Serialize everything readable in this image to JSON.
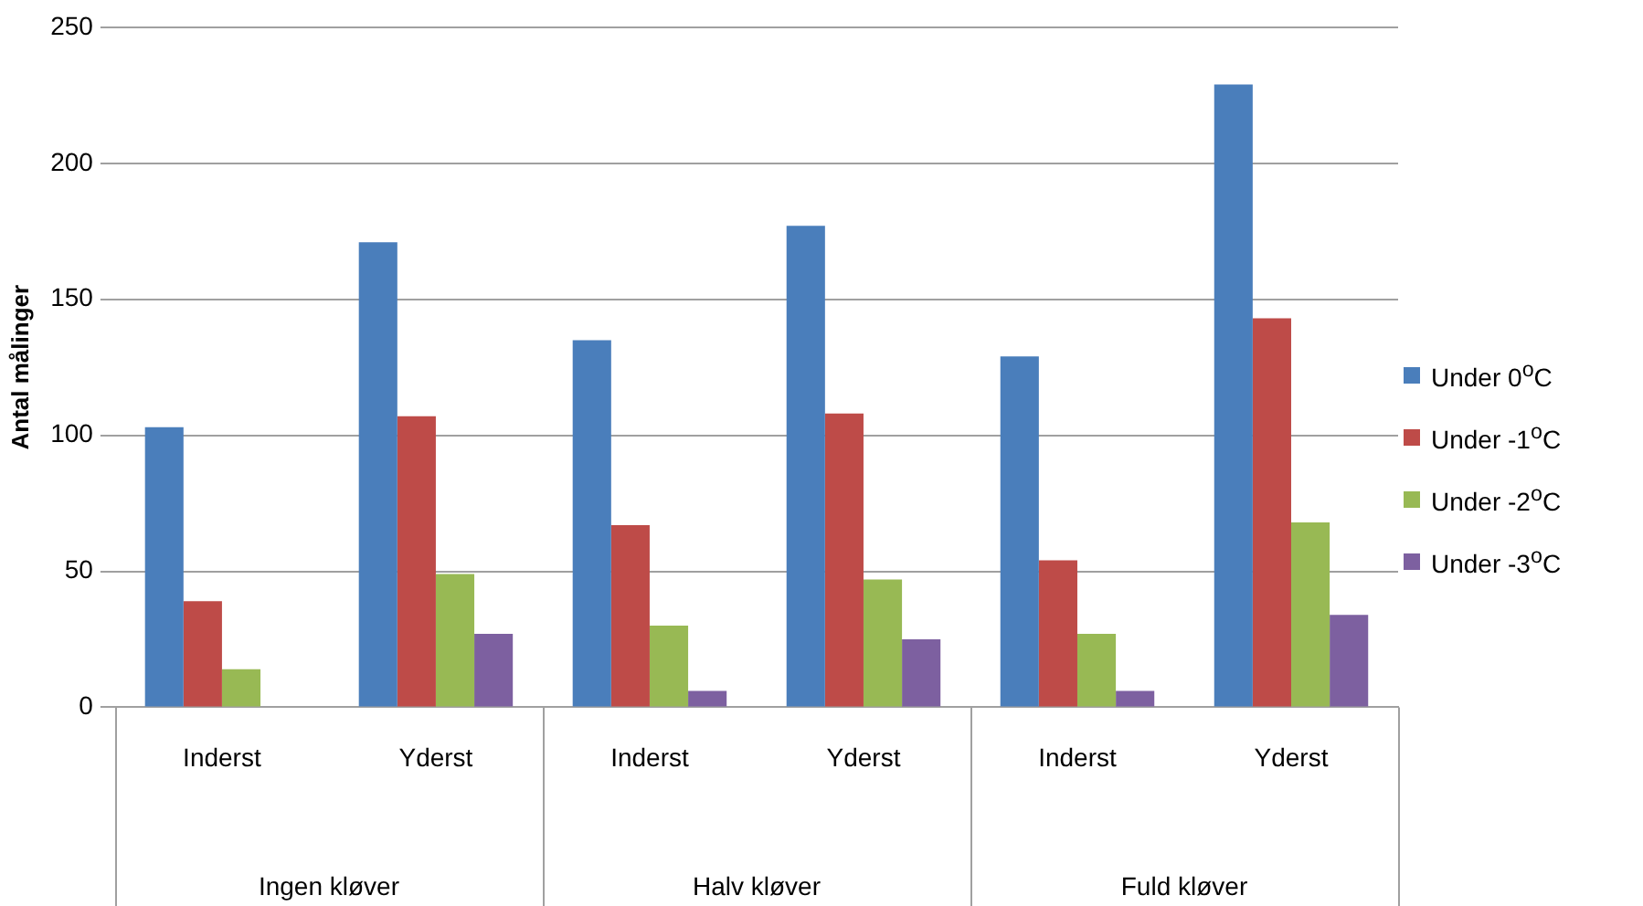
{
  "chart_data": {
    "type": "bar",
    "ylabel": "Antal målinger",
    "categories": [
      "Inderst",
      "Yderst",
      "Inderst",
      "Yderst",
      "Inderst",
      "Yderst"
    ],
    "series": [
      {
        "name": "Under 0$^{o}$C",
        "color": "#4a7ebb",
        "values": [
          103,
          171,
          135,
          177,
          129,
          229
        ]
      },
      {
        "name": "Under -1$^{o}$C",
        "color": "#be4b48",
        "values": [
          39,
          107,
          67,
          108,
          54,
          143
        ]
      },
      {
        "name": "Under -2$^{o}$C",
        "color": "#98b954",
        "values": [
          14,
          49,
          30,
          47,
          27,
          68
        ]
      },
      {
        "name": "Under -3$^{o}$C",
        "color": "#7d60a0",
        "values": [
          0,
          27,
          6,
          25,
          6,
          34
        ]
      }
    ],
    "annotations": [
      "Ingen kløver",
      "Halv kløver",
      "Fuld kløver"
    ],
    "ylim": [
      0,
      250
    ],
    "yticks": [
      0,
      50,
      100,
      150,
      200,
      250
    ],
    "grid": "y",
    "legend": "right"
  }
}
